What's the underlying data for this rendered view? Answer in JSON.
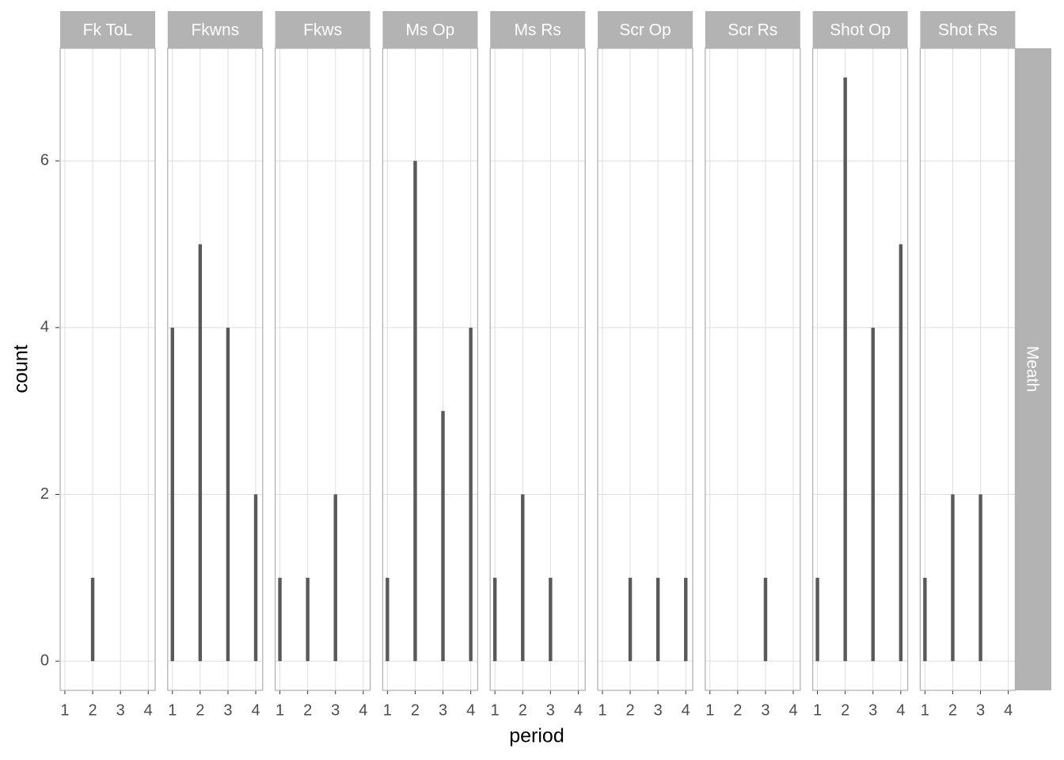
{
  "chart_data": {
    "type": "bar",
    "xlabel": "period",
    "ylabel": "count",
    "row_label": "Meath",
    "color": "#595959",
    "grid": true,
    "xlim": [
      0.83,
      4.25
    ],
    "xticks": [
      1,
      2,
      3,
      4
    ],
    "ylim": [
      -0.35,
      7.35
    ],
    "yticks": [
      0,
      2,
      4,
      6
    ],
    "facets": [
      {
        "name": "Fk ToL",
        "x": [
          2
        ],
        "values": [
          1
        ]
      },
      {
        "name": "Fkwns",
        "x": [
          1,
          2,
          3,
          4
        ],
        "values": [
          4,
          5,
          4,
          2
        ]
      },
      {
        "name": "Fkws",
        "x": [
          1,
          2,
          3
        ],
        "values": [
          1,
          1,
          2
        ]
      },
      {
        "name": "Ms Op",
        "x": [
          1,
          2,
          3,
          4
        ],
        "values": [
          1,
          6,
          3,
          4
        ]
      },
      {
        "name": "Ms Rs",
        "x": [
          1,
          2,
          3
        ],
        "values": [
          1,
          2,
          1
        ]
      },
      {
        "name": "Scr Op",
        "x": [
          2,
          3,
          4
        ],
        "values": [
          1,
          1,
          1
        ]
      },
      {
        "name": "Scr Rs",
        "x": [
          3
        ],
        "values": [
          1
        ]
      },
      {
        "name": "Shot Op",
        "x": [
          1,
          2,
          3,
          4
        ],
        "values": [
          1,
          7,
          4,
          5
        ]
      },
      {
        "name": "Shot Rs",
        "x": [
          1,
          2,
          3
        ],
        "values": [
          1,
          2,
          2
        ]
      }
    ]
  }
}
